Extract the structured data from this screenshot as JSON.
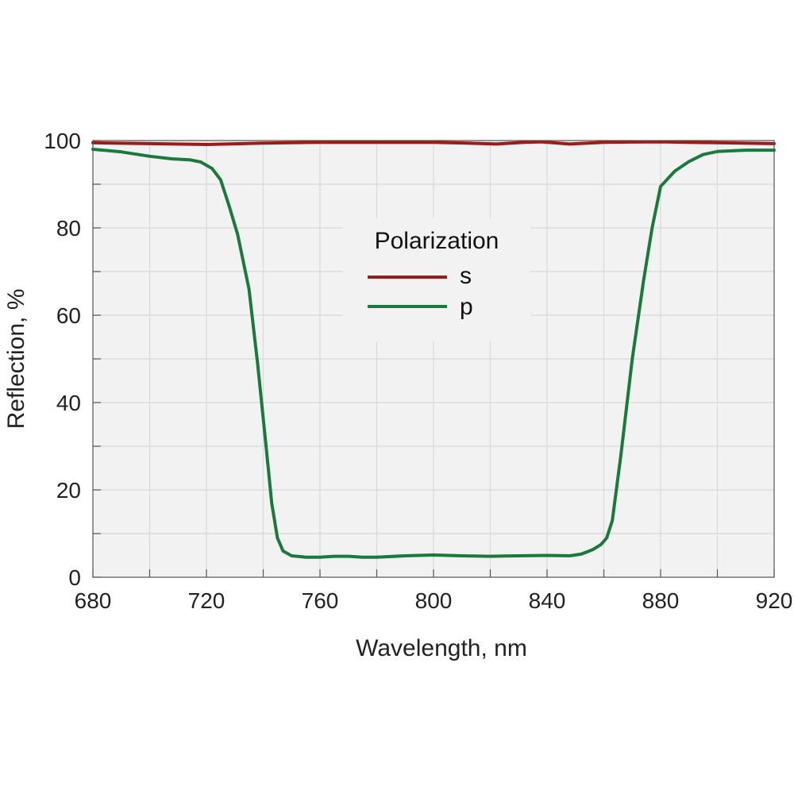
{
  "chart_data": {
    "type": "line",
    "xlabel": "Wavelength, nm",
    "ylabel": "Reflection, %",
    "xlim": [
      680,
      920
    ],
    "ylim": [
      0,
      100
    ],
    "x_ticks": [
      680,
      720,
      760,
      800,
      840,
      880,
      920
    ],
    "y_ticks": [
      0,
      20,
      40,
      60,
      80,
      100
    ],
    "x_minor_step": 20,
    "y_minor_step": 10,
    "grid": true,
    "legend": {
      "title": "Polarization",
      "placement": "center-top"
    },
    "plot_background": "#f2f2f2",
    "grid_color": "#d9d9d9",
    "series": [
      {
        "name": "s",
        "color": "#9b1b1b",
        "points": [
          [
            680,
            99.5
          ],
          [
            700,
            99.3
          ],
          [
            720,
            99.1
          ],
          [
            740,
            99.4
          ],
          [
            760,
            99.6
          ],
          [
            780,
            99.6
          ],
          [
            800,
            99.6
          ],
          [
            812,
            99.4
          ],
          [
            822,
            99.2
          ],
          [
            832,
            99.6
          ],
          [
            838,
            99.7
          ],
          [
            848,
            99.2
          ],
          [
            860,
            99.6
          ],
          [
            880,
            99.7
          ],
          [
            900,
            99.5
          ],
          [
            920,
            99.3
          ]
        ]
      },
      {
        "name": "p",
        "color": "#1a7a3c",
        "points": [
          [
            680,
            98.0
          ],
          [
            690,
            97.4
          ],
          [
            700,
            96.4
          ],
          [
            708,
            95.8
          ],
          [
            714,
            95.6
          ],
          [
            718,
            95.1
          ],
          [
            722,
            93.6
          ],
          [
            725,
            91.0
          ],
          [
            728,
            85.0
          ],
          [
            731,
            78.5
          ],
          [
            735,
            66.0
          ],
          [
            738,
            49.0
          ],
          [
            741,
            30.0
          ],
          [
            743,
            17.0
          ],
          [
            745,
            9.0
          ],
          [
            747,
            6.0
          ],
          [
            750,
            4.9
          ],
          [
            755,
            4.6
          ],
          [
            760,
            4.6
          ],
          [
            765,
            4.8
          ],
          [
            770,
            4.8
          ],
          [
            775,
            4.6
          ],
          [
            780,
            4.6
          ],
          [
            790,
            4.9
          ],
          [
            800,
            5.1
          ],
          [
            810,
            4.9
          ],
          [
            820,
            4.8
          ],
          [
            830,
            4.9
          ],
          [
            840,
            5.0
          ],
          [
            848,
            4.9
          ],
          [
            852,
            5.3
          ],
          [
            856,
            6.3
          ],
          [
            859,
            7.5
          ],
          [
            861,
            9.0
          ],
          [
            863,
            13.0
          ],
          [
            866,
            28.0
          ],
          [
            870,
            50.0
          ],
          [
            874,
            68.0
          ],
          [
            877,
            80.0
          ],
          [
            880,
            89.5
          ],
          [
            885,
            93.0
          ],
          [
            890,
            95.2
          ],
          [
            895,
            96.8
          ],
          [
            900,
            97.5
          ],
          [
            910,
            97.8
          ],
          [
            920,
            97.8
          ]
        ]
      }
    ]
  }
}
